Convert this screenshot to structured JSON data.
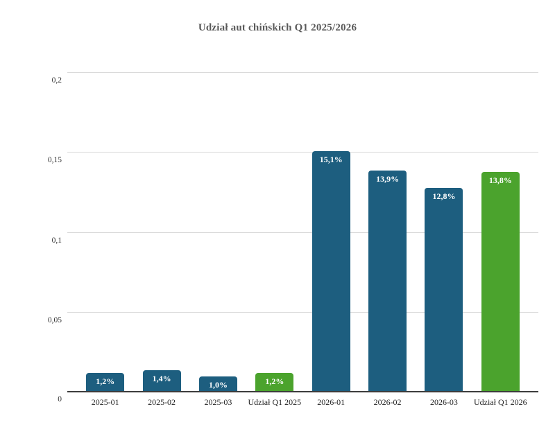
{
  "title": "Udział aut chińskich Q1 2025/2026",
  "chart_data": {
    "type": "bar",
    "title": "Udział aut chińskich Q1 2025/2026",
    "categories": [
      "2025-01",
      "2025-02",
      "2025-03",
      "Udział Q1 2025",
      "2026-01",
      "2026-02",
      "2026-03",
      "Udział Q1 2026"
    ],
    "values": [
      0.012,
      0.014,
      0.01,
      0.012,
      0.151,
      0.139,
      0.128,
      0.138
    ],
    "bar_labels": [
      "1,2%",
      "1,4%",
      "1,0%",
      "1,2%",
      "15,1%",
      "13,9%",
      "12,8%",
      "13,8%"
    ],
    "bar_colors": [
      "#1d5e7f",
      "#1d5e7f",
      "#1d5e7f",
      "#4ba32d",
      "#1d5e7f",
      "#1d5e7f",
      "#1d5e7f",
      "#4ba32d"
    ],
    "xlabel": "",
    "ylabel": "",
    "ylim": [
      0,
      0.2
    ],
    "ytick_labels": [
      "0",
      "0,05",
      "0,1",
      "0,15",
      "0,2"
    ],
    "ytick_values": [
      0,
      0.05,
      0.1,
      0.15,
      0.2
    ],
    "grid": true,
    "legend_position": "none",
    "colors": {
      "monthly_bar": "#1d5e7f",
      "quarter_share_bar": "#4ba32d",
      "gridline": "#d9d9d9",
      "axis_line": "#3c3c3c",
      "title_text": "#595959"
    }
  }
}
